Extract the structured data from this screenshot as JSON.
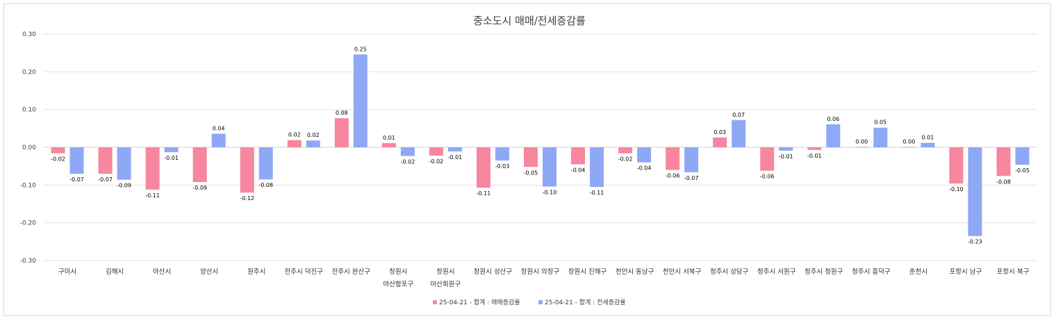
{
  "chart_data": {
    "type": "bar",
    "title": "중소도시 매매/전세증감률",
    "xlabel": "",
    "ylabel": "",
    "ylim": [
      -0.3,
      0.3
    ],
    "yticks": [
      "0.30",
      "0.20",
      "0.10",
      "0.00",
      "-0.10",
      "-0.20",
      "-0.30"
    ],
    "ytick_values": [
      0.3,
      0.2,
      0.1,
      0.0,
      -0.1,
      -0.2,
      -0.3
    ],
    "grid": true,
    "legend_position": "bottom",
    "categories": [
      [
        "구미시"
      ],
      [
        "김해시"
      ],
      [
        "아산시"
      ],
      [
        "양산시"
      ],
      [
        "원주시"
      ],
      [
        "전주시 덕진구"
      ],
      [
        "전주시 완산구"
      ],
      [
        "창원시",
        "마산합포구"
      ],
      [
        "창원시",
        "마산회원구"
      ],
      [
        "창원시 성산구"
      ],
      [
        "창원시 의창구"
      ],
      [
        "창원시 진해구"
      ],
      [
        "천안시 동남구"
      ],
      [
        "천안시 서북구"
      ],
      [
        "청주시 상당구"
      ],
      [
        "청주시 서원구"
      ],
      [
        "청주시 청원구"
      ],
      [
        "청주시 흥덕구"
      ],
      [
        "춘천시"
      ],
      [
        "포항시 남구"
      ],
      [
        "포항시 북구"
      ]
    ],
    "series": [
      {
        "name": "25-04-21 - 합계 : 매매증감률",
        "color": "#f7869f",
        "values": [
          -0.016,
          -0.07,
          -0.112,
          -0.092,
          -0.12,
          0.019,
          0.077,
          0.011,
          -0.022,
          -0.107,
          -0.052,
          -0.045,
          -0.016,
          -0.06,
          0.026,
          -0.062,
          -0.007,
          0.001,
          0.001,
          -0.096,
          -0.076
        ],
        "labels": [
          "-0.02",
          "-0.07",
          "-0.11",
          "-0.09",
          "-0.12",
          "0.02",
          "0.08",
          "0.01",
          "-0.02",
          "-0.11",
          "-0.05",
          "-0.04",
          "-0.02",
          "-0.06",
          "0.03",
          "-0.06",
          "-0.01",
          "0.00",
          "0.00",
          "-0.10",
          "-0.08"
        ]
      },
      {
        "name": "25-04-21 - 합계 : 전세증감률",
        "color": "#8fa8f5",
        "values": [
          -0.07,
          -0.086,
          -0.013,
          0.036,
          -0.085,
          0.018,
          0.246,
          -0.023,
          -0.011,
          -0.035,
          -0.104,
          -0.105,
          -0.04,
          -0.066,
          0.072,
          -0.009,
          0.061,
          0.052,
          0.012,
          -0.235,
          -0.046
        ],
        "labels": [
          "-0.07",
          "-0.09",
          "-0.01",
          "0.04",
          "-0.08",
          "0.02",
          "0.25",
          "-0.02",
          "-0.01",
          "-0.03",
          "-0.10",
          "-0.11",
          "-0.04",
          "-0.07",
          "0.07",
          "-0.01",
          "0.06",
          "0.05",
          "0.01",
          "-0.23",
          "-0.05"
        ]
      }
    ]
  }
}
